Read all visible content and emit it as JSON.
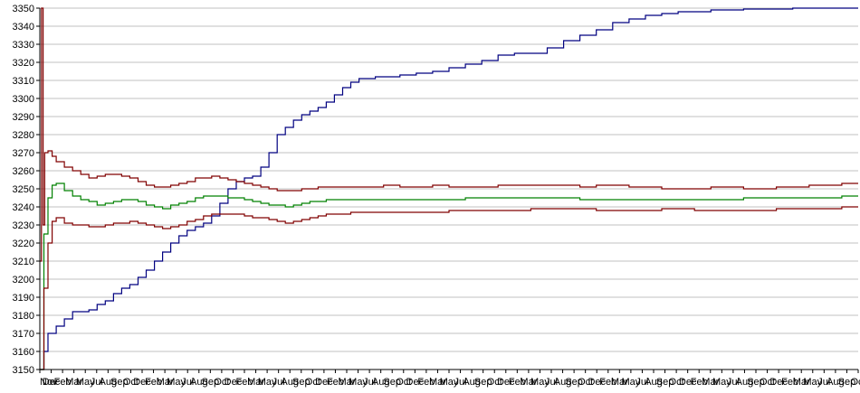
{
  "chart_data": {
    "type": "line",
    "title": "",
    "xlabel": "",
    "ylabel": "",
    "ylim": [
      3150,
      3350
    ],
    "yticks": [
      3150,
      3160,
      3170,
      3180,
      3190,
      3200,
      3210,
      3220,
      3230,
      3240,
      3250,
      3260,
      3270,
      3280,
      3290,
      3300,
      3310,
      3320,
      3330,
      3340,
      3350
    ],
    "xlim": [
      0,
      100
    ],
    "grid": "horizontal",
    "legend": "none",
    "xtick_labels": [
      "Nov",
      "Dec",
      "Feb",
      "Mar",
      "May",
      "Jul",
      "Aug",
      "Sep",
      "Oct",
      "Dec",
      "Feb",
      "Mar",
      "May",
      "Jul",
      "Aug",
      "Sep",
      "Oct",
      "Dec",
      "Feb",
      "Mar",
      "May",
      "Jul",
      "Aug",
      "Sep",
      "Oct",
      "Dec",
      "Feb",
      "Mar",
      "May",
      "Jul",
      "Aug",
      "Sep",
      "Oct",
      "Dec",
      "Feb",
      "Mar",
      "May",
      "Jul",
      "Aug",
      "Sep",
      "Oct",
      "Dec",
      "Feb",
      "Mar",
      "May",
      "Jul",
      "Aug",
      "Sep",
      "Oct",
      "Dec",
      "Feb",
      "Mar",
      "May",
      "Jul",
      "Aug",
      "Sep",
      "Oct",
      "Dec",
      "Feb",
      "Mar",
      "May",
      "Jul",
      "Aug",
      "Sep",
      "Oct",
      "Dec",
      "Feb",
      "Mar",
      "May",
      "Jul",
      "Aug",
      "Sep",
      "Oct"
    ],
    "series": [
      {
        "color": "#000080",
        "x": [
          0,
          0.5,
          1,
          2,
          3,
          4,
          5,
          6,
          7,
          8,
          9,
          10,
          11,
          12,
          13,
          14,
          15,
          16,
          17,
          18,
          19,
          20,
          21,
          22,
          23,
          24,
          25,
          26,
          27,
          28,
          29,
          30,
          31,
          32,
          33,
          34,
          35,
          36,
          37,
          38,
          39,
          40,
          41,
          42,
          44,
          46,
          48,
          50,
          52,
          54,
          56,
          58,
          60,
          62,
          64,
          66,
          68,
          70,
          72,
          74,
          76,
          78,
          80,
          82,
          84,
          86,
          88,
          90,
          92,
          94,
          96,
          98,
          100
        ],
        "y": [
          3150,
          3160,
          3170,
          3174,
          3178,
          3182,
          3182,
          3183,
          3186,
          3188,
          3192,
          3195,
          3197,
          3201,
          3205,
          3210,
          3215,
          3220,
          3224,
          3227,
          3229,
          3231,
          3235,
          3242,
          3250,
          3254,
          3256,
          3257,
          3262,
          3270,
          3280,
          3284,
          3288,
          3291,
          3293,
          3295,
          3298,
          3302,
          3306,
          3309,
          3311,
          3311,
          3312,
          3312,
          3313,
          3314,
          3315,
          3317,
          3319,
          3321,
          3324,
          3325,
          3325,
          3328,
          3332,
          3335,
          3338,
          3342,
          3344,
          3346,
          3347,
          3348,
          3348,
          3349,
          3349,
          3349.5,
          3349.5,
          3349.5,
          3350,
          3350,
          3350,
          3350,
          3350
        ]
      },
      {
        "color": "#800000",
        "x": [
          0,
          0.2,
          0.4,
          0.6,
          1,
          1.5,
          2,
          3,
          4,
          5,
          6,
          7,
          8,
          9,
          10,
          11,
          12,
          13,
          14,
          15,
          16,
          17,
          18,
          19,
          20,
          21,
          22,
          23,
          24,
          25,
          26,
          27,
          28,
          29,
          30,
          31,
          32,
          33,
          34,
          35,
          36,
          37,
          38,
          39,
          40,
          42,
          44,
          46,
          48,
          50,
          52,
          54,
          56,
          58,
          60,
          62,
          64,
          66,
          68,
          70,
          72,
          74,
          76,
          78,
          80,
          82,
          84,
          86,
          88,
          90,
          92,
          94,
          96,
          98,
          100
        ],
        "y": [
          3210,
          3350,
          3230,
          3270,
          3271,
          3268,
          3265,
          3262,
          3260,
          3258,
          3256,
          3257,
          3258,
          3258,
          3257,
          3256,
          3254,
          3252,
          3251,
          3251,
          3252,
          3253,
          3254,
          3256,
          3256,
          3257,
          3256,
          3255,
          3254,
          3253,
          3252,
          3251,
          3250,
          3249,
          3249,
          3249,
          3250,
          3250,
          3251,
          3251,
          3251,
          3251,
          3251,
          3251,
          3251,
          3252,
          3251,
          3251,
          3252,
          3251,
          3251,
          3251,
          3252,
          3252,
          3252,
          3252,
          3252,
          3251,
          3252,
          3252,
          3251,
          3251,
          3250,
          3250,
          3250,
          3251,
          3251,
          3250,
          3250,
          3251,
          3251,
          3252,
          3252,
          3253,
          3253
        ]
      },
      {
        "color": "#008000",
        "x": [
          0,
          0.5,
          1,
          1.5,
          2,
          3,
          4,
          5,
          6,
          7,
          8,
          9,
          10,
          11,
          12,
          13,
          14,
          15,
          16,
          17,
          18,
          19,
          20,
          21,
          22,
          23,
          24,
          25,
          26,
          27,
          28,
          29,
          30,
          31,
          32,
          33,
          34,
          35,
          36,
          37,
          38,
          39,
          40,
          42,
          44,
          46,
          48,
          50,
          52,
          54,
          56,
          58,
          60,
          62,
          64,
          66,
          68,
          70,
          72,
          74,
          76,
          78,
          80,
          82,
          84,
          86,
          88,
          90,
          92,
          94,
          96,
          98,
          100
        ],
        "y": [
          3150,
          3225,
          3245,
          3252,
          3253,
          3249,
          3246,
          3244,
          3243,
          3241,
          3242,
          3243,
          3244,
          3244,
          3243,
          3241,
          3240,
          3239,
          3241,
          3242,
          3243,
          3245,
          3246,
          3246,
          3246,
          3245,
          3245,
          3244,
          3243,
          3242,
          3241,
          3241,
          3240,
          3241,
          3242,
          3243,
          3243,
          3244,
          3244,
          3244,
          3244,
          3244,
          3244,
          3244,
          3244,
          3244,
          3244,
          3244,
          3245,
          3245,
          3245,
          3245,
          3245,
          3245,
          3245,
          3244,
          3244,
          3244,
          3244,
          3244,
          3244,
          3244,
          3244,
          3244,
          3244,
          3245,
          3245,
          3245,
          3245,
          3245,
          3245,
          3246,
          3246
        ]
      },
      {
        "color": "#800000",
        "x": [
          0,
          0.5,
          1,
          1.5,
          2,
          3,
          4,
          5,
          6,
          7,
          8,
          9,
          10,
          11,
          12,
          13,
          14,
          15,
          16,
          17,
          18,
          19,
          20,
          21,
          22,
          23,
          24,
          25,
          26,
          27,
          28,
          29,
          30,
          31,
          32,
          33,
          34,
          35,
          36,
          37,
          38,
          39,
          40,
          42,
          44,
          46,
          48,
          50,
          52,
          54,
          56,
          58,
          60,
          62,
          64,
          66,
          68,
          70,
          72,
          74,
          76,
          78,
          80,
          82,
          84,
          86,
          88,
          90,
          92,
          94,
          96,
          98,
          100
        ],
        "y": [
          3150,
          3195,
          3220,
          3232,
          3234,
          3231,
          3230,
          3230,
          3229,
          3229,
          3230,
          3231,
          3231,
          3232,
          3231,
          3230,
          3229,
          3228,
          3229,
          3230,
          3232,
          3233,
          3235,
          3236,
          3236,
          3236,
          3236,
          3235,
          3234,
          3234,
          3233,
          3232,
          3231,
          3232,
          3233,
          3234,
          3235,
          3236,
          3236,
          3236,
          3237,
          3237,
          3237,
          3237,
          3237,
          3237,
          3237,
          3238,
          3238,
          3238,
          3238,
          3238,
          3239,
          3239,
          3239,
          3239,
          3238,
          3238,
          3238,
          3238,
          3239,
          3239,
          3238,
          3238,
          3238,
          3238,
          3238,
          3239,
          3239,
          3239,
          3239,
          3240,
          3240
        ]
      }
    ]
  }
}
